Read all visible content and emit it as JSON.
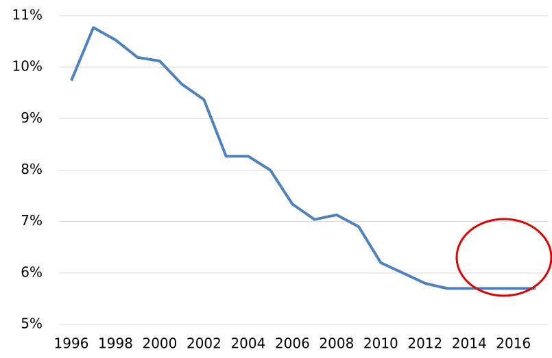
{
  "chart_data": {
    "type": "line",
    "x": [
      1996,
      1997,
      1998,
      1999,
      2000,
      2001,
      2002,
      2003,
      2004,
      2005,
      2006,
      2007,
      2008,
      2009,
      2010,
      2011,
      2012,
      2013,
      2014,
      2015,
      2016,
      2017
    ],
    "series": [
      {
        "color": "#4f81bd",
        "values": [
          9.74,
          10.77,
          10.53,
          10.19,
          10.12,
          9.67,
          9.37,
          8.27,
          8.27,
          8.0,
          7.34,
          7.04,
          7.13,
          6.9,
          6.2,
          6.0,
          5.8,
          5.7,
          5.7,
          5.7,
          5.7,
          5.7
        ]
      }
    ],
    "xlim": [
      1996,
      2017
    ],
    "xticks": [
      1996,
      1998,
      2000,
      2002,
      2004,
      2006,
      2008,
      2010,
      2012,
      2014,
      2016
    ],
    "ylim": [
      5,
      11
    ],
    "yticks": [
      {
        "value": 5,
        "label": "5%"
      },
      {
        "value": 6,
        "label": "6%"
      },
      {
        "value": 7,
        "label": "7%"
      },
      {
        "value": 8,
        "label": "8%"
      },
      {
        "value": 9,
        "label": "9%"
      },
      {
        "value": 10,
        "label": "10%"
      },
      {
        "value": 11,
        "label": "11%"
      }
    ],
    "grid": true
  }
}
